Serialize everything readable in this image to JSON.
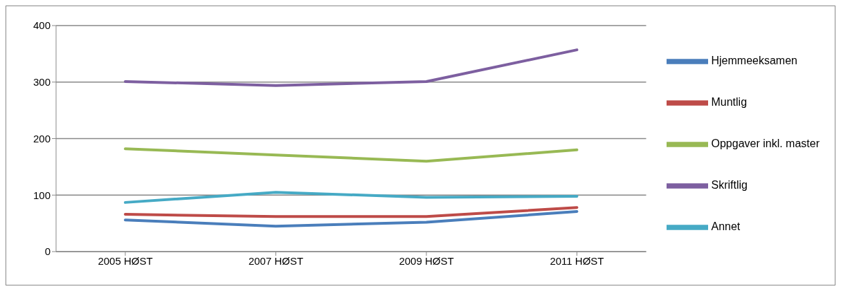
{
  "chart_data": {
    "type": "line",
    "categories": [
      "2005 HØST",
      "2007 HØST",
      "2009 HØST",
      "2011 HØST"
    ],
    "series": [
      {
        "name": "Hjemmeeksamen",
        "color": "#4a7ebb",
        "values": [
          56,
          45,
          52,
          71
        ]
      },
      {
        "name": "Muntlig",
        "color": "#be4b48",
        "values": [
          66,
          62,
          62,
          78
        ]
      },
      {
        "name": "Oppgaver inkl. master",
        "color": "#98b954",
        "values": [
          182,
          171,
          160,
          180
        ]
      },
      {
        "name": "Skriftlig",
        "color": "#7d5fa0",
        "values": [
          301,
          294,
          301,
          357
        ]
      },
      {
        "name": "Annet",
        "color": "#46aac5",
        "values": [
          87,
          105,
          96,
          98
        ]
      }
    ],
    "ylim": [
      0,
      400
    ],
    "yticks": [
      0,
      100,
      200,
      300,
      400
    ],
    "grid": "y",
    "legend": "right",
    "marker": "none",
    "line_style": "solid"
  }
}
